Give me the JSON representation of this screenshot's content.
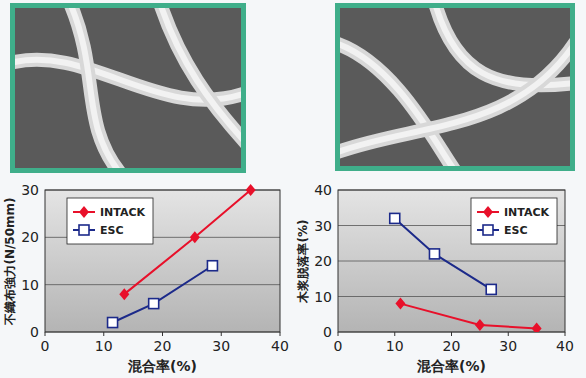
{
  "chart_data": [
    {
      "type": "line",
      "x_label": "混合率(%)",
      "y_label": "不織布強力(N/50mm)",
      "xlim": [
        0,
        40
      ],
      "xticks": [
        0,
        10,
        20,
        30,
        40
      ],
      "ylim": [
        0,
        30
      ],
      "yticks": [
        0,
        10,
        20,
        30
      ],
      "grid": true,
      "legend": "top-left",
      "series": [
        {
          "name": "INTACK",
          "color": "#e8102a",
          "marker": "diamond",
          "x": [
            13.5,
            25.5,
            35
          ],
          "values": [
            8,
            20,
            30
          ]
        },
        {
          "name": "ESC",
          "color": "#1c2a8a",
          "marker": "open-square",
          "x": [
            11.5,
            18.5,
            28.5
          ],
          "values": [
            2,
            6,
            14
          ]
        }
      ]
    },
    {
      "type": "line",
      "x_label": "混合率(%)",
      "y_label": "木浆脱落率(%)",
      "xlim": [
        0,
        40
      ],
      "xticks": [
        0,
        10,
        20,
        30,
        40
      ],
      "ylim": [
        0,
        40
      ],
      "yticks": [
        0,
        10,
        20,
        30,
        40
      ],
      "grid": true,
      "legend": "top-right",
      "series": [
        {
          "name": "INTACK",
          "color": "#e8102a",
          "marker": "diamond",
          "x": [
            11,
            25,
            35
          ],
          "values": [
            8,
            2,
            1
          ]
        },
        {
          "name": "ESC",
          "color": "#1c2a8a",
          "marker": "open-square",
          "x": [
            10,
            17,
            27
          ],
          "values": [
            32,
            22,
            12
          ]
        }
      ]
    }
  ]
}
